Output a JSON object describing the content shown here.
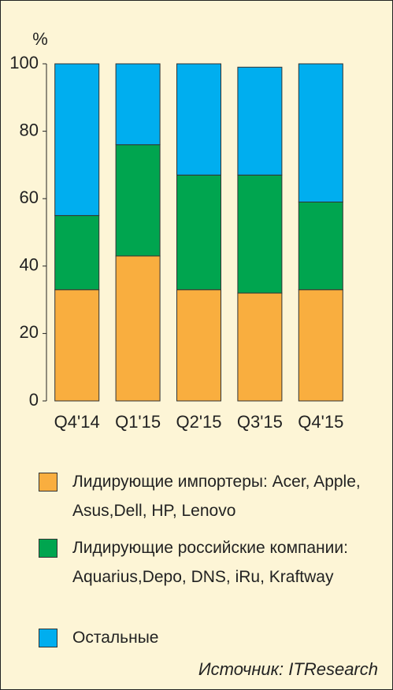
{
  "chart_data": {
    "type": "stacked-bar",
    "y_label": "%",
    "categories": [
      "Q4'14",
      "Q1'15",
      "Q2'15",
      "Q3'15",
      "Q4'15"
    ],
    "series": [
      {
        "name": "Лидирующие импортеры: Acer, Apple, Asus,Dell, HP, Lenovo",
        "color": "#f9ae3f",
        "values": [
          33,
          43,
          33,
          32,
          33
        ]
      },
      {
        "name": "Лидирующие российские компании: Aquarius,Depo, DNS, iRu, Kraftway",
        "color": "#00a54f",
        "values": [
          22,
          33,
          34,
          35,
          26
        ]
      },
      {
        "name": "Остальные",
        "color": "#00aeef",
        "values": [
          45,
          24,
          33,
          32,
          41
        ]
      }
    ],
    "ylim": [
      0,
      100
    ],
    "yticks": [
      0,
      20,
      40,
      60,
      80,
      100
    ],
    "source": "Источник: ITResearch"
  }
}
